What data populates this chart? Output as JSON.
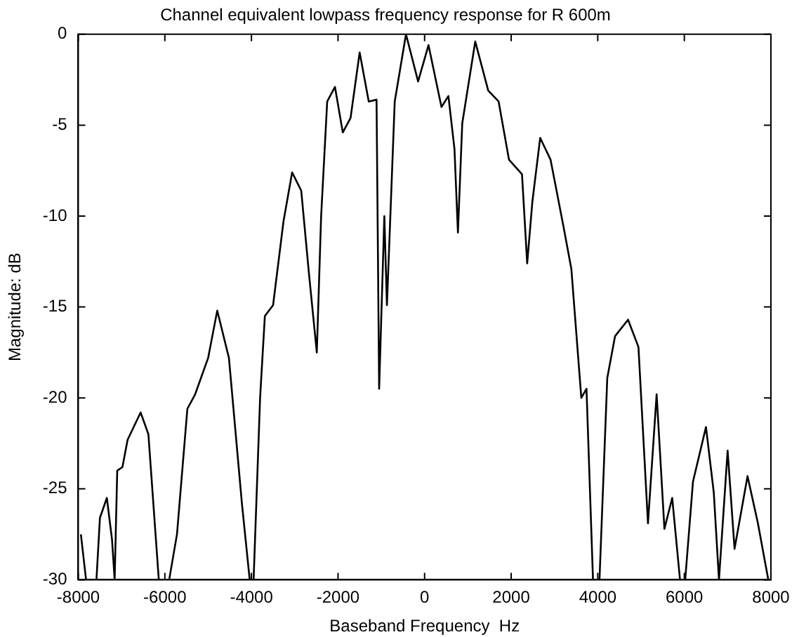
{
  "chart_data": {
    "type": "line",
    "title": "Channel equivalent lowpass frequency response for R 600m",
    "xlabel": "Baseband Frequency  Hz",
    "ylabel": "Magnitude: dB",
    "xlim": [
      -8000,
      8000
    ],
    "ylim": [
      -30,
      0
    ],
    "xticks": [
      -8000,
      -6000,
      -4000,
      -2000,
      0,
      2000,
      4000,
      6000,
      8000
    ],
    "yticks": [
      -30,
      -25,
      -20,
      -15,
      -10,
      -5,
      0
    ],
    "grid": false,
    "legend": false,
    "marker": "none",
    "line_style": "solid",
    "series": [
      {
        "color": "#000000",
        "x": [
          -7940,
          -7820,
          -7580,
          -7500,
          -7340,
          -7220,
          -7160,
          -7100,
          -6980,
          -6860,
          -6560,
          -6380,
          -6140,
          -5900,
          -5720,
          -5480,
          -5300,
          -5000,
          -4790,
          -4520,
          -4220,
          -4040,
          -3950,
          -3800,
          -3690,
          -3500,
          -3260,
          -3060,
          -2850,
          -2670,
          -2490,
          -2390,
          -2250,
          -2070,
          -1890,
          -1710,
          -1500,
          -1290,
          -1110,
          -1050,
          -930,
          -870,
          -690,
          -430,
          -150,
          90,
          390,
          550,
          690,
          770,
          870,
          1170,
          1470,
          1710,
          1950,
          2250,
          2370,
          2490,
          2670,
          2910,
          3210,
          3390,
          3510,
          3620,
          3740,
          3890,
          4040,
          4220,
          4400,
          4700,
          4940,
          5160,
          5360,
          5540,
          5720,
          5900,
          6020,
          6200,
          6500,
          6680,
          6800,
          7000,
          7160,
          7460,
          7700,
          7940
        ],
        "values": [
          -27.5,
          -30,
          -30,
          -26.6,
          -25.5,
          -27.8,
          -30,
          -24,
          -23.8,
          -22.3,
          -20.8,
          -22,
          -30,
          -30,
          -27.5,
          -20.6,
          -19.8,
          -17.8,
          -15.2,
          -17.8,
          -25.8,
          -30,
          -30,
          -20,
          -15.5,
          -14.9,
          -10.3,
          -7.6,
          -8.6,
          -13.2,
          -17.5,
          -10,
          -3.7,
          -2.9,
          -5.4,
          -4.6,
          -1,
          -3.7,
          -3.6,
          -19.5,
          -10,
          -14.9,
          -3.7,
          0,
          -2.6,
          -0.6,
          -4,
          -3.4,
          -6.3,
          -10.9,
          -4.9,
          -0.4,
          -3.1,
          -3.7,
          -6.9,
          -7.7,
          -12.6,
          -9.2,
          -5.7,
          -6.9,
          -10.6,
          -12.9,
          -16.6,
          -20,
          -19.5,
          -30,
          -30,
          -18.9,
          -16.6,
          -15.7,
          -17.2,
          -26.9,
          -19.8,
          -27.2,
          -25.5,
          -30,
          -30,
          -24.6,
          -21.6,
          -25.2,
          -30,
          -22.9,
          -28.3,
          -24.3,
          -26.9,
          -30
        ]
      }
    ]
  }
}
